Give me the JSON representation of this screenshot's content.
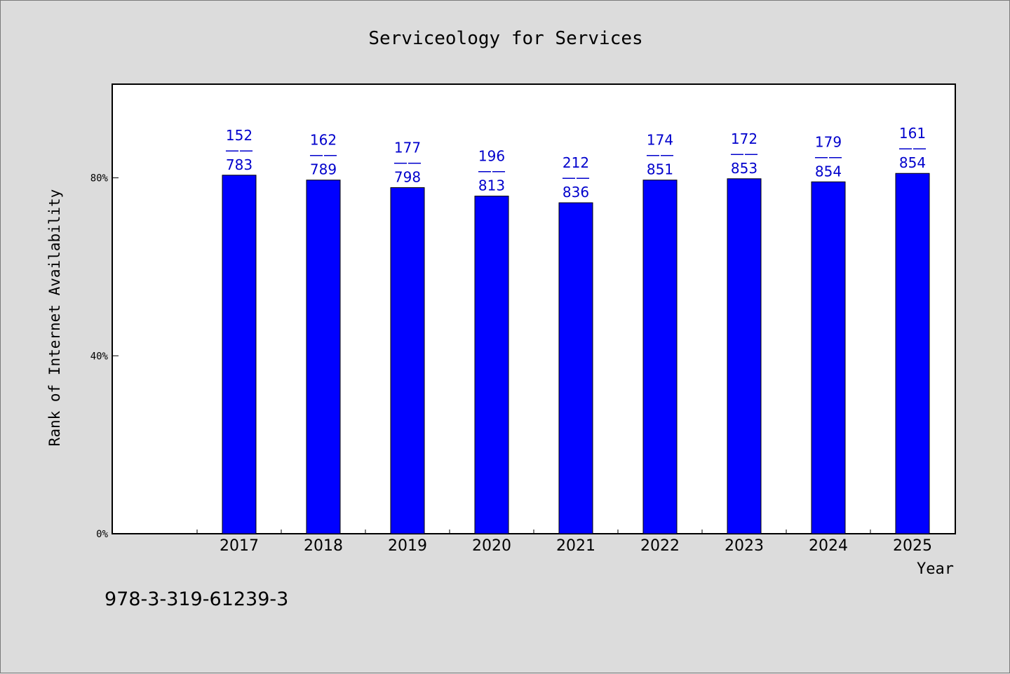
{
  "chart_data": {
    "type": "bar",
    "title": "Serviceology for Services",
    "xlabel": "Year",
    "ylabel": "Rank of Internet Availability",
    "categories": [
      "2017",
      "2018",
      "2019",
      "2020",
      "2021",
      "2022",
      "2023",
      "2024",
      "2025"
    ],
    "values": [
      80.6,
      79.5,
      77.8,
      75.9,
      74.4,
      79.5,
      79.8,
      79.1,
      81.0
    ],
    "data_labels": [
      {
        "top": "152",
        "sep": "——",
        "bottom": "783"
      },
      {
        "top": "162",
        "sep": "——",
        "bottom": "789"
      },
      {
        "top": "177",
        "sep": "——",
        "bottom": "798"
      },
      {
        "top": "196",
        "sep": "——",
        "bottom": "813"
      },
      {
        "top": "212",
        "sep": "——",
        "bottom": "836"
      },
      {
        "top": "174",
        "sep": "——",
        "bottom": "851"
      },
      {
        "top": "172",
        "sep": "——",
        "bottom": "853"
      },
      {
        "top": "179",
        "sep": "——",
        "bottom": "854"
      },
      {
        "top": "161",
        "sep": "——",
        "bottom": "854"
      }
    ],
    "ylim": [
      0,
      100.9
    ],
    "yticks": [
      {
        "value": 0,
        "label": "0%"
      },
      {
        "value": 40,
        "label": "40%"
      },
      {
        "value": 80,
        "label": "80%"
      }
    ],
    "grid": false,
    "legend": "none",
    "bar_color": "#0000ff",
    "label_color": "#0000cc",
    "plot_background": "#ffffff",
    "page_background": "#dcdcdc"
  },
  "footer": {
    "isbn": "978-3-319-61239-3"
  }
}
